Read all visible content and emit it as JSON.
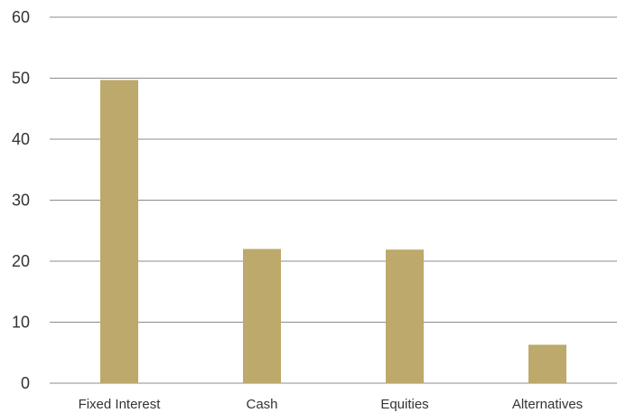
{
  "chart_data": {
    "type": "bar",
    "categories": [
      "Fixed Interest",
      "Cash",
      "Equities",
      "Alternatives"
    ],
    "series": [
      {
        "values": [
          49.7,
          22.0,
          21.9,
          6.3
        ]
      }
    ],
    "title": "",
    "xlabel": "",
    "ylabel": "",
    "ylim": [
      0,
      60
    ],
    "yticks": [
      "0",
      "10",
      "20",
      "30",
      "40",
      "50",
      "60"
    ],
    "grid": true,
    "legend": "none",
    "colors": {
      "bar": "#bca96b",
      "grid": "#8c8c8c",
      "text": "#333333"
    }
  }
}
